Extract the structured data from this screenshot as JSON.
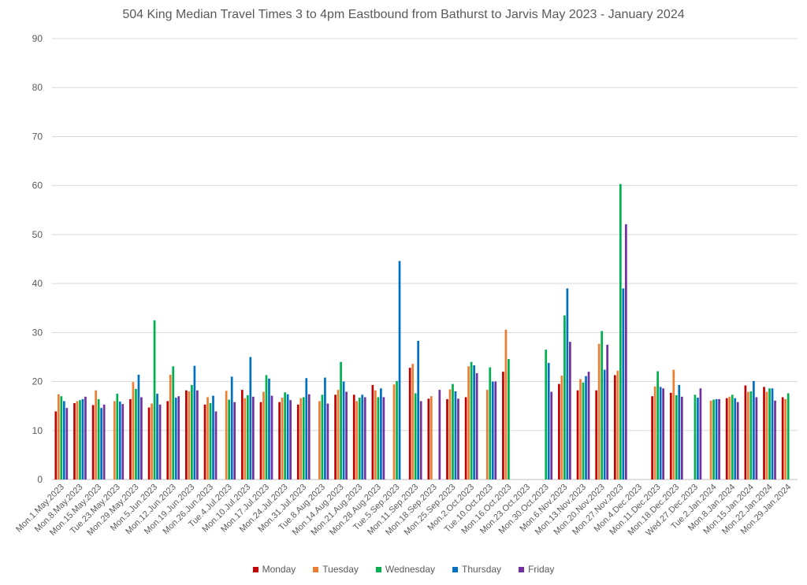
{
  "chart_data": {
    "type": "bar",
    "title": "504 King Median Travel Times 3 to 4pm Eastbound from Bathurst to Jarvis May 2023 - January 2024",
    "xlabel": "",
    "ylabel": "",
    "ylim": [
      0,
      90
    ],
    "yticks": [
      0,
      10,
      20,
      30,
      40,
      50,
      60,
      70,
      80,
      90
    ],
    "grid": true,
    "legend_position": "bottom",
    "categories": [
      "Mon.1.May.2023",
      "Mon.8.May.2023",
      "Mon.15.May.2023",
      "Tue.23.May.2023",
      "Mon.29.May.2023",
      "Mon.5.Jun.2023",
      "Mon.12.Jun.2023",
      "Mon.19.Jun.2023",
      "Mon.26.Jun.2023",
      "Tue.4.Jul.2023",
      "Mon.10.Jul.2023",
      "Mon.17.Jul.2023",
      "Mon.24.Jul.2023",
      "Mon.31.Jul.2023",
      "Tue.8.Aug.2023",
      "Mon.14.Aug.2023",
      "Mon.21.Aug.2023",
      "Mon.28.Aug.2023",
      "Tue.5.Sep.2023",
      "Mon.11.Sep.2023",
      "Mon.18.Sep.2023",
      "Mon.25.Sep.2023",
      "Mon.2.Oct.2023",
      "Tue.10.Oct.2023",
      "Mon.16.Oct.2023",
      "Mon.23.Oct.2023",
      "Mon.30.Oct.2023",
      "Mon.6.Nov.2023",
      "Mon.13.Nov.2023",
      "Mon.20.Nov.2023",
      "Mon.27.Nov.2023",
      "Mon.4.Dec.2023",
      "Mon.11.Dec.2023",
      "Mon.18.Dec.2023",
      "Wed.27.Dec.2023",
      "Tue.2.Jan.2024",
      "Mon.8.Jan.2024",
      "Mon.15.Jan.2024",
      "Mon.22.Jan.2024",
      "Mon.29.Jan.2024"
    ],
    "series": [
      {
        "name": "Monday",
        "color": "#c00000",
        "values": [
          13.9,
          15.6,
          15.2,
          null,
          16.4,
          14.7,
          16.0,
          18.2,
          15.3,
          null,
          18.3,
          15.8,
          15.8,
          15.3,
          null,
          17.3,
          17.3,
          19.3,
          null,
          22.8,
          16.5,
          16.4,
          16.8,
          null,
          22.0,
          null,
          null,
          19.5,
          18.2,
          18.2,
          21.3,
          null,
          17.0,
          17.7,
          null,
          null,
          16.6,
          19.2,
          18.9,
          16.8
        ]
      },
      {
        "name": "Tuesday",
        "color": "#ed7d31",
        "values": [
          17.4,
          16.0,
          18.2,
          16.0,
          19.9,
          15.5,
          21.4,
          18.0,
          16.8,
          18.1,
          16.6,
          17.9,
          16.7,
          16.6,
          16.0,
          18.3,
          16.0,
          18.2,
          19.4,
          23.6,
          17.0,
          18.4,
          23.1,
          18.3,
          30.6,
          null,
          null,
          21.2,
          20.5,
          27.7,
          22.2,
          null,
          19.0,
          22.4,
          null,
          16.1,
          16.9,
          17.9,
          17.9,
          16.4
        ]
      },
      {
        "name": "Wednesday",
        "color": "#00b050",
        "values": [
          17.0,
          16.2,
          16.4,
          17.5,
          18.5,
          32.5,
          23.1,
          19.3,
          15.6,
          16.3,
          17.2,
          21.3,
          17.8,
          16.8,
          17.3,
          24.0,
          16.7,
          16.8,
          20.1,
          17.6,
          null,
          19.5,
          24.0,
          22.9,
          24.6,
          null,
          26.5,
          33.5,
          19.8,
          30.3,
          60.3,
          null,
          22.1,
          17.2,
          17.3,
          16.3,
          17.3,
          18.0,
          18.6,
          17.6
        ]
      },
      {
        "name": "Thursday",
        "color": "#0070c0",
        "values": [
          16.0,
          16.4,
          14.6,
          15.9,
          21.4,
          17.5,
          16.7,
          23.2,
          17.1,
          21.0,
          25.0,
          20.6,
          17.4,
          20.7,
          20.8,
          20.0,
          17.3,
          18.6,
          44.6,
          28.3,
          null,
          18.0,
          23.3,
          20.0,
          null,
          null,
          23.8,
          39.0,
          21.1,
          22.4,
          39.0,
          null,
          18.9,
          19.3,
          16.7,
          16.4,
          16.6,
          20.1,
          18.6,
          null
        ]
      },
      {
        "name": "Friday",
        "color": "#7030a0",
        "values": [
          14.6,
          16.9,
          15.3,
          15.4,
          16.8,
          15.3,
          17.0,
          18.2,
          13.9,
          15.8,
          16.9,
          17.1,
          16.2,
          17.4,
          15.5,
          17.9,
          16.8,
          16.8,
          null,
          16.0,
          18.3,
          16.5,
          21.7,
          20.0,
          null,
          null,
          17.9,
          28.1,
          22.0,
          27.5,
          52.1,
          null,
          18.6,
          16.9,
          18.6,
          16.4,
          15.8,
          16.8,
          16.1,
          null
        ]
      }
    ]
  }
}
